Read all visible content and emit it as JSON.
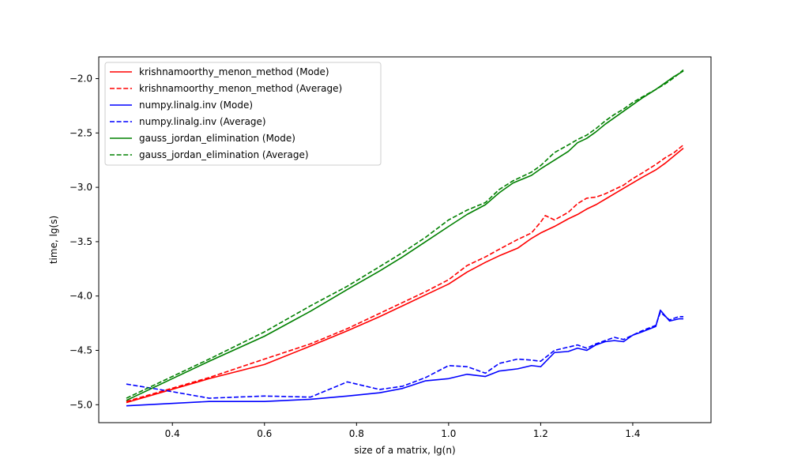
{
  "chart_data": {
    "type": "line",
    "title": "",
    "xlabel": "size of a matrix, lg(n)",
    "ylabel": "time, lg(s)",
    "xlim": [
      0.24,
      1.57
    ],
    "ylim": [
      -5.165,
      -1.8
    ],
    "xticks": [
      0.4,
      0.6,
      0.8,
      1.0,
      1.2,
      1.4
    ],
    "xtick_labels": [
      "0.4",
      "0.6",
      "0.8",
      "1.0",
      "1.2",
      "1.4"
    ],
    "yticks": [
      -5.0,
      -4.5,
      -4.0,
      -3.5,
      -3.0,
      -2.5,
      -2.0
    ],
    "ytick_labels": [
      "−5.0",
      "−4.5",
      "−4.0",
      "−3.5",
      "−3.0",
      "−2.5",
      "−2.0"
    ],
    "grid": false,
    "legend_position": "top-left",
    "series": [
      {
        "name": "krishnamoorthy_menon_method (Mode)",
        "color": "#ff0000",
        "dash": "solid",
        "x": [
          0.3,
          0.48,
          0.6,
          0.7,
          0.78,
          0.85,
          0.9,
          0.95,
          1.0,
          1.04,
          1.08,
          1.11,
          1.15,
          1.18,
          1.2,
          1.23,
          1.26,
          1.28,
          1.3,
          1.32,
          1.34,
          1.36,
          1.38,
          1.4,
          1.42,
          1.45,
          1.47,
          1.49,
          1.51
        ],
        "y": [
          -4.98,
          -4.76,
          -4.63,
          -4.46,
          -4.32,
          -4.19,
          -4.09,
          -3.99,
          -3.89,
          -3.78,
          -3.69,
          -3.63,
          -3.56,
          -3.47,
          -3.42,
          -3.36,
          -3.29,
          -3.25,
          -3.2,
          -3.16,
          -3.11,
          -3.06,
          -3.01,
          -2.96,
          -2.91,
          -2.84,
          -2.78,
          -2.71,
          -2.64
        ]
      },
      {
        "name": "krishnamoorthy_menon_method (Average)",
        "color": "#ff0000",
        "dash": "dashed",
        "x": [
          0.3,
          0.48,
          0.6,
          0.7,
          0.78,
          0.85,
          0.9,
          0.95,
          1.0,
          1.04,
          1.08,
          1.11,
          1.15,
          1.18,
          1.2,
          1.21,
          1.23,
          1.26,
          1.28,
          1.3,
          1.32,
          1.34,
          1.36,
          1.38,
          1.4,
          1.42,
          1.45,
          1.47,
          1.49,
          1.51
        ],
        "y": [
          -4.97,
          -4.75,
          -4.58,
          -4.44,
          -4.3,
          -4.16,
          -4.06,
          -3.96,
          -3.85,
          -3.72,
          -3.64,
          -3.57,
          -3.48,
          -3.42,
          -3.32,
          -3.26,
          -3.3,
          -3.23,
          -3.15,
          -3.1,
          -3.09,
          -3.06,
          -3.02,
          -2.98,
          -2.92,
          -2.87,
          -2.79,
          -2.73,
          -2.68,
          -2.61
        ]
      },
      {
        "name": "numpy.linalg.inv (Mode)",
        "color": "#0000ff",
        "dash": "solid",
        "x": [
          0.3,
          0.48,
          0.6,
          0.7,
          0.78,
          0.85,
          0.9,
          0.95,
          1.0,
          1.04,
          1.08,
          1.11,
          1.15,
          1.18,
          1.2,
          1.23,
          1.26,
          1.28,
          1.3,
          1.32,
          1.34,
          1.36,
          1.38,
          1.4,
          1.42,
          1.45,
          1.46,
          1.48,
          1.5,
          1.51
        ],
        "y": [
          -5.01,
          -4.97,
          -4.97,
          -4.95,
          -4.92,
          -4.89,
          -4.85,
          -4.78,
          -4.76,
          -4.72,
          -4.74,
          -4.69,
          -4.67,
          -4.64,
          -4.65,
          -4.52,
          -4.51,
          -4.48,
          -4.5,
          -4.45,
          -4.42,
          -4.41,
          -4.42,
          -4.36,
          -4.33,
          -4.28,
          -4.13,
          -4.23,
          -4.21,
          -4.21
        ]
      },
      {
        "name": "numpy.linalg.inv (Average)",
        "color": "#0000ff",
        "dash": "dashed",
        "x": [
          0.3,
          0.4,
          0.48,
          0.6,
          0.7,
          0.78,
          0.85,
          0.9,
          0.95,
          1.0,
          1.04,
          1.08,
          1.11,
          1.15,
          1.18,
          1.2,
          1.23,
          1.26,
          1.28,
          1.3,
          1.32,
          1.34,
          1.36,
          1.38,
          1.4,
          1.42,
          1.45,
          1.46,
          1.48,
          1.5,
          1.51
        ],
        "y": [
          -4.81,
          -4.88,
          -4.94,
          -4.92,
          -4.93,
          -4.79,
          -4.86,
          -4.83,
          -4.75,
          -4.64,
          -4.65,
          -4.71,
          -4.62,
          -4.58,
          -4.59,
          -4.6,
          -4.5,
          -4.47,
          -4.45,
          -4.48,
          -4.44,
          -4.41,
          -4.38,
          -4.4,
          -4.36,
          -4.32,
          -4.27,
          -4.15,
          -4.22,
          -4.19,
          -4.19
        ]
      },
      {
        "name": "gauss_jordan_elimination (Mode)",
        "color": "#008000",
        "dash": "solid",
        "x": [
          0.3,
          0.48,
          0.6,
          0.7,
          0.78,
          0.85,
          0.9,
          0.95,
          1.0,
          1.04,
          1.08,
          1.11,
          1.14,
          1.18,
          1.2,
          1.23,
          1.26,
          1.28,
          1.3,
          1.32,
          1.34,
          1.36,
          1.38,
          1.4,
          1.42,
          1.45,
          1.47,
          1.49,
          1.51
        ],
        "y": [
          -4.96,
          -4.6,
          -4.37,
          -4.14,
          -3.94,
          -3.77,
          -3.64,
          -3.5,
          -3.36,
          -3.25,
          -3.16,
          -3.05,
          -2.96,
          -2.89,
          -2.83,
          -2.75,
          -2.67,
          -2.59,
          -2.55,
          -2.49,
          -2.42,
          -2.36,
          -2.3,
          -2.24,
          -2.18,
          -2.1,
          -2.04,
          -1.98,
          -1.93
        ]
      },
      {
        "name": "gauss_jordan_elimination (Average)",
        "color": "#008000",
        "dash": "dashed",
        "x": [
          0.3,
          0.48,
          0.6,
          0.7,
          0.78,
          0.85,
          0.9,
          0.95,
          1.0,
          1.04,
          1.08,
          1.11,
          1.14,
          1.18,
          1.2,
          1.23,
          1.26,
          1.28,
          1.3,
          1.32,
          1.34,
          1.36,
          1.38,
          1.4,
          1.42,
          1.45,
          1.47,
          1.49,
          1.51
        ],
        "y": [
          -4.94,
          -4.58,
          -4.33,
          -4.09,
          -3.91,
          -3.73,
          -3.6,
          -3.46,
          -3.3,
          -3.21,
          -3.14,
          -3.02,
          -2.94,
          -2.86,
          -2.8,
          -2.68,
          -2.61,
          -2.56,
          -2.52,
          -2.46,
          -2.39,
          -2.33,
          -2.28,
          -2.22,
          -2.17,
          -2.1,
          -2.05,
          -1.99,
          -1.92
        ]
      }
    ]
  }
}
